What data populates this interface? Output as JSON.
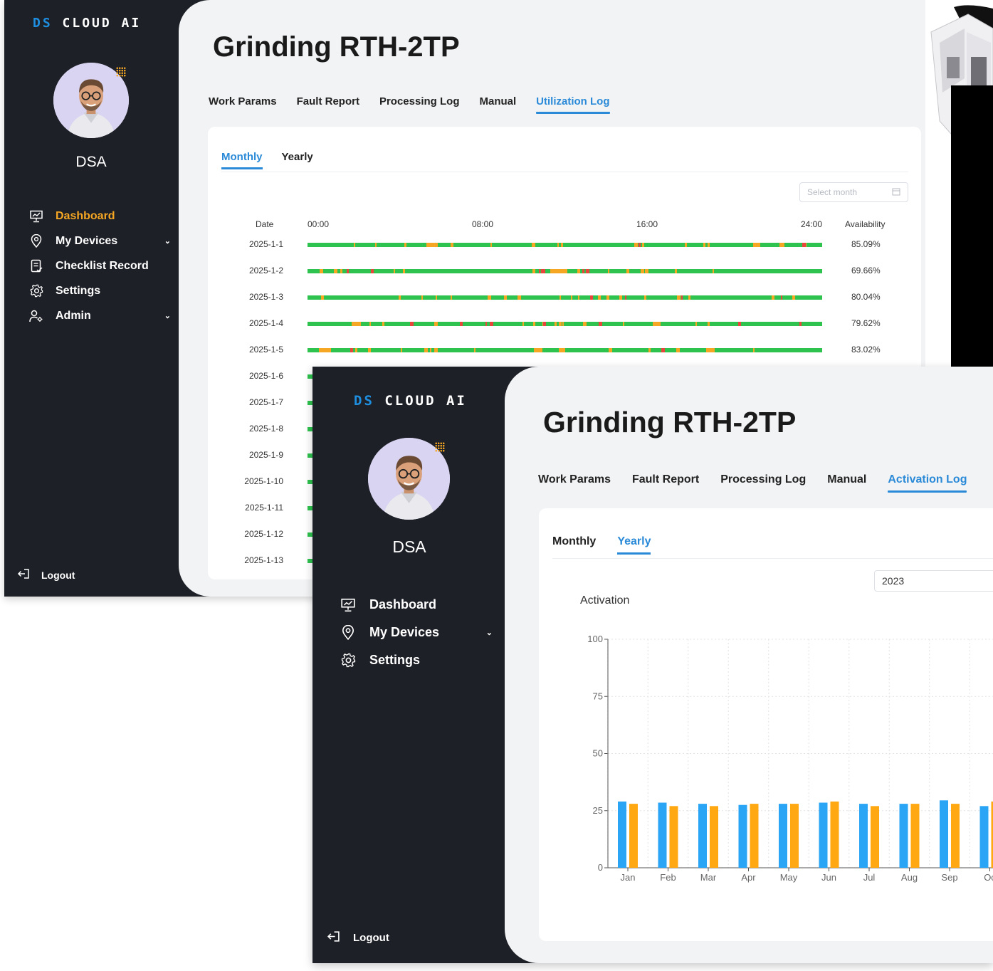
{
  "windowA": {
    "brand": {
      "ds": "DS",
      "cloud": "CLOUD AI"
    },
    "user": {
      "name": "DSA"
    },
    "nav": [
      {
        "label": "Dashboard",
        "icon": "presentation-chart-icon",
        "active": true,
        "chevron": false
      },
      {
        "label": "My Devices",
        "icon": "map-pin-icon",
        "active": false,
        "chevron": true
      },
      {
        "label": "Checklist Record",
        "icon": "checklist-icon",
        "active": false,
        "chevron": false
      },
      {
        "label": "Settings",
        "icon": "gear-icon",
        "active": false,
        "chevron": false
      },
      {
        "label": "Admin",
        "icon": "users-admin-icon",
        "active": false,
        "chevron": true
      }
    ],
    "logout": "Logout",
    "title": "Grinding RTH-2TP",
    "tabs": [
      "Work Params",
      "Fault Report",
      "Processing Log",
      "Manual",
      "Utilization Log"
    ],
    "active_tab": 4,
    "subtabs": [
      "Monthly",
      "Yearly"
    ],
    "active_subtab": 0,
    "month_placeholder": "Select month",
    "table_header": {
      "date": "Date",
      "t0": "00:00",
      "t8": "08:00",
      "t16": "16:00",
      "t24": "24:00",
      "availability": "Availability"
    },
    "rows": [
      {
        "date": "2025-1-1",
        "availability": "85.09%"
      },
      {
        "date": "2025-1-2",
        "availability": "69.66%"
      },
      {
        "date": "2025-1-3",
        "availability": "80.04%"
      },
      {
        "date": "2025-1-4",
        "availability": "79.62%"
      },
      {
        "date": "2025-1-5",
        "availability": "83.02%"
      },
      {
        "date": "2025-1-6",
        "availability": ""
      },
      {
        "date": "2025-1-7",
        "availability": ""
      },
      {
        "date": "2025-1-8",
        "availability": ""
      },
      {
        "date": "2025-1-9",
        "availability": ""
      },
      {
        "date": "2025-1-10",
        "availability": ""
      },
      {
        "date": "2025-1-11",
        "availability": ""
      },
      {
        "date": "2025-1-12",
        "availability": ""
      },
      {
        "date": "2025-1-13",
        "availability": ""
      }
    ],
    "colors": {
      "running": "#2ec24e",
      "idle": "#f5a623",
      "fault": "#e8453c",
      "accent": "#2a8ad8",
      "nav_active": "#f5a623"
    }
  },
  "windowB": {
    "brand": {
      "ds": "DS",
      "cloud": "CLOUD AI"
    },
    "user": {
      "name": "DSA"
    },
    "nav": [
      {
        "label": "Dashboard",
        "icon": "presentation-chart-icon",
        "chevron": false
      },
      {
        "label": "My Devices",
        "icon": "map-pin-icon",
        "chevron": true
      },
      {
        "label": "Settings",
        "icon": "gear-icon",
        "chevron": false
      }
    ],
    "logout": "Logout",
    "title": "Grinding RTH-2TP",
    "tabs": [
      "Work Params",
      "Fault Report",
      "Processing Log",
      "Manual",
      "Activation Log"
    ],
    "active_tab": 4,
    "subtabs": [
      "Monthly",
      "Yearly"
    ],
    "active_subtab": 1,
    "year_value": "2023",
    "chart_title": "Activation"
  },
  "chart_data": {
    "type": "bar",
    "title": "Activation",
    "categories": [
      "Jan",
      "Feb",
      "Mar",
      "Apr",
      "May",
      "Jun",
      "Jul",
      "Aug",
      "Sep",
      "Oc"
    ],
    "series": [
      {
        "values": [
          29,
          28.5,
          28,
          27.5,
          28,
          28.5,
          28,
          28,
          29.5,
          27
        ],
        "color": "#2aa5f5"
      },
      {
        "values": [
          28,
          27,
          27,
          28,
          28,
          29,
          27,
          28,
          28,
          29
        ],
        "color": "#ffa812"
      }
    ],
    "ylim": [
      0,
      100
    ],
    "yticks": [
      0,
      25,
      50,
      75,
      100
    ],
    "grid": true,
    "xlabel": "",
    "ylabel": ""
  }
}
